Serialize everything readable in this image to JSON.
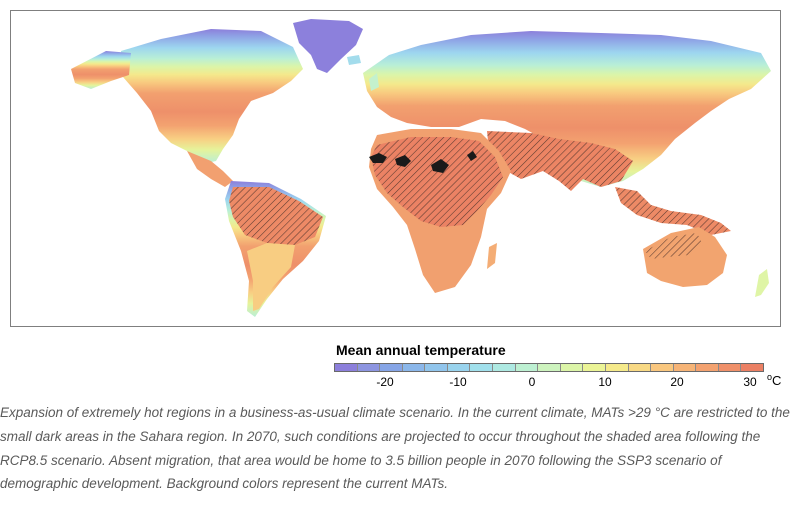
{
  "legend": {
    "title": "Mean annual temperature",
    "ticks": [
      "-20",
      "-10",
      "0",
      "10",
      "20",
      "30"
    ],
    "unit_super": "o",
    "unit_base": "C",
    "colors": [
      "#8c7fdb",
      "#8d95e0",
      "#86a5e6",
      "#8bb7ea",
      "#91c5ec",
      "#99d3ed",
      "#a1e0ec",
      "#aee9e2",
      "#bdf0d2",
      "#cdf3be",
      "#dcf5a8",
      "#ebf496",
      "#f5ea8b",
      "#f8d985",
      "#f9c77f",
      "#f6b477",
      "#f3a270",
      "#ef906a",
      "#eb8064"
    ]
  },
  "caption": "Expansion of extremely hot regions in a business-as-usual climate scenario. In the current climate, MATs >29 °C are restricted to the small dark areas in the Sahara region. In 2070, such conditions are projected to occur throughout the shaded area following the RCP8.5 scenario. Absent migration, that area would be home to 3.5 billion people in 2070 following the SSP3 scenario of demographic development. Background colors represent the current MATs."
}
